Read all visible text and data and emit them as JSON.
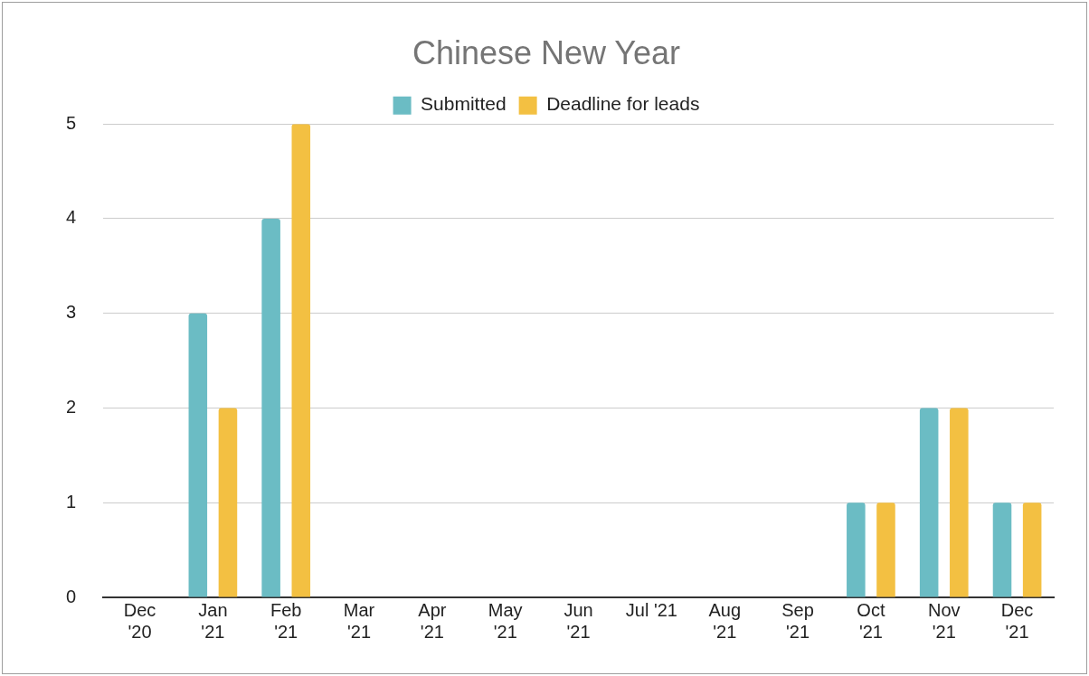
{
  "chart_data": {
    "type": "bar",
    "title": "Chinese New Year",
    "categories": [
      "Dec\n'20",
      "Jan\n'21",
      "Feb\n'21",
      "Mar\n'21",
      "Apr\n'21",
      "May\n'21",
      "Jun\n'21",
      "Jul '21",
      "Aug\n'21",
      "Sep\n'21",
      "Oct\n'21",
      "Nov\n'21",
      "Dec\n'21"
    ],
    "series": [
      {
        "name": "Submitted",
        "color": "#6bbcc4",
        "values": [
          0,
          3,
          4,
          0,
          0,
          0,
          0,
          0,
          0,
          0,
          1,
          2,
          1
        ]
      },
      {
        "name": "Deadline for leads",
        "color": "#f3c042",
        "values": [
          0,
          2,
          5,
          0,
          0,
          0,
          0,
          0,
          0,
          0,
          1,
          2,
          1
        ]
      }
    ],
    "ylim": [
      0,
      5
    ],
    "yticks": [
      0,
      1,
      2,
      3,
      4,
      5
    ],
    "grid": "y",
    "legend": "top"
  }
}
